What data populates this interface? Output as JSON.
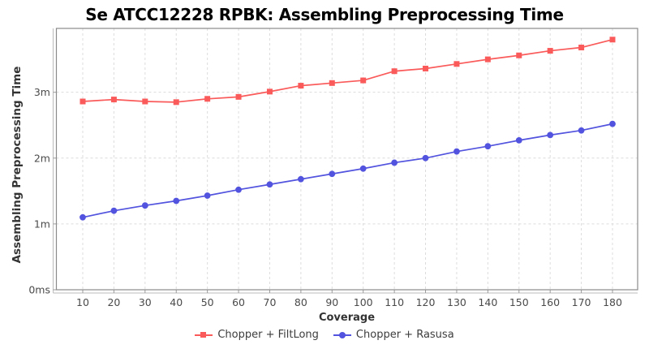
{
  "title": "Se ATCC12228 RPBK: Assembling Preprocessing Time",
  "chart_data": {
    "type": "line",
    "title": "Se ATCC12228 RPBK: Assembling Preprocessing Time",
    "xlabel": "Coverage",
    "ylabel": "Assembling Preprocessing Time",
    "y_unit": "minutes",
    "x": [
      10,
      20,
      30,
      40,
      50,
      60,
      70,
      80,
      90,
      100,
      110,
      120,
      130,
      140,
      150,
      160,
      170,
      180
    ],
    "series": [
      {
        "name": "Chopper + FiltLong",
        "marker": "square",
        "color": "#FA5A5A",
        "values_min": [
          2.86,
          2.89,
          2.86,
          2.85,
          2.9,
          2.93,
          3.01,
          3.1,
          3.14,
          3.18,
          3.32,
          3.36,
          3.43,
          3.5,
          3.56,
          3.63,
          3.68,
          3.8
        ]
      },
      {
        "name": "Chopper + Rasusa",
        "marker": "circle",
        "color": "#5253DE",
        "values_min": [
          1.1,
          1.2,
          1.28,
          1.35,
          1.43,
          1.52,
          1.6,
          1.68,
          1.76,
          1.84,
          1.93,
          2.0,
          2.1,
          2.18,
          2.27,
          2.35,
          2.42,
          2.52
        ]
      }
    ],
    "ylim": [
      0,
      3.97
    ],
    "y_ticks": [
      {
        "value": 0,
        "label": "0ms"
      },
      {
        "value": 1,
        "label": "1m"
      },
      {
        "value": 2,
        "label": "2m"
      },
      {
        "value": 3,
        "label": "3m"
      }
    ],
    "grid": "dashed",
    "legend_position": "bottom-center"
  },
  "colors": {
    "grid": "#dcdcdc",
    "frame": "#8a8a8a",
    "axis_line": "#bbbbbb",
    "tick_mark": "#999999",
    "tick_label": "#4a4a4a",
    "title_text": "#000000",
    "axis_label_text": "#333333",
    "legend_text": "#3c3c3c",
    "background": "#ffffff"
  }
}
